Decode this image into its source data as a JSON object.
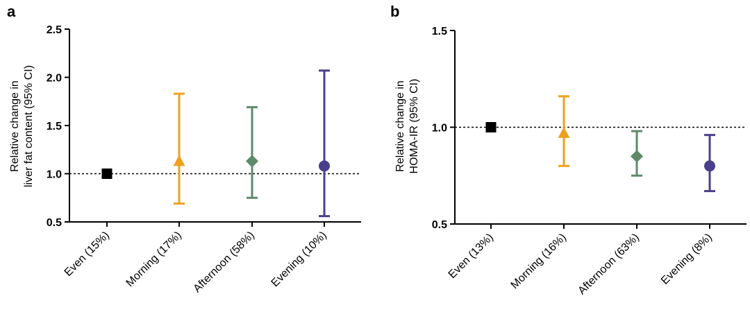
{
  "chart_data": [
    {
      "panel_label": "a",
      "type": "errorbar",
      "ylabel_lines": [
        "Relative change in",
        "liver  fat content (95% CI)"
      ],
      "ylim": [
        0.5,
        2.5
      ],
      "yticks": [
        "0.5",
        "1.0",
        "1.5",
        "2.0",
        "2.5"
      ],
      "reference_line": 1.0,
      "categories": [
        "Even (15%)",
        "Morning (17%)",
        "Afternoon (58%)",
        "Evening (10%)"
      ],
      "points": [
        {
          "estimate": 1.0,
          "ci_low": null,
          "ci_high": null,
          "marker": "square",
          "color": "#000000"
        },
        {
          "estimate": 1.13,
          "ci_low": 0.69,
          "ci_high": 1.83,
          "marker": "triangle",
          "color": "#f0a020"
        },
        {
          "estimate": 1.13,
          "ci_low": 0.75,
          "ci_high": 1.69,
          "marker": "diamond",
          "color": "#5e8a68"
        },
        {
          "estimate": 1.08,
          "ci_low": 0.56,
          "ci_high": 2.07,
          "marker": "circle",
          "color": "#4a3f8c"
        }
      ]
    },
    {
      "panel_label": "b",
      "type": "errorbar",
      "ylabel_lines": [
        "Relative change in",
        "HOMA-IR (95% CI)"
      ],
      "ylim": [
        0.5,
        1.5
      ],
      "yticks": [
        "0.5",
        "1.0",
        "1.5"
      ],
      "reference_line": 1.0,
      "categories": [
        "Even (13%)",
        "Morning (16%)",
        "Afternoon (63%)",
        "Evening (8%)"
      ],
      "points": [
        {
          "estimate": 1.0,
          "ci_low": null,
          "ci_high": null,
          "marker": "square",
          "color": "#000000"
        },
        {
          "estimate": 0.97,
          "ci_low": 0.8,
          "ci_high": 1.16,
          "marker": "triangle",
          "color": "#f0a020"
        },
        {
          "estimate": 0.85,
          "ci_low": 0.75,
          "ci_high": 0.98,
          "marker": "diamond",
          "color": "#5e8a68"
        },
        {
          "estimate": 0.8,
          "ci_low": 0.67,
          "ci_high": 0.96,
          "marker": "circle",
          "color": "#4a3f8c"
        }
      ]
    }
  ]
}
